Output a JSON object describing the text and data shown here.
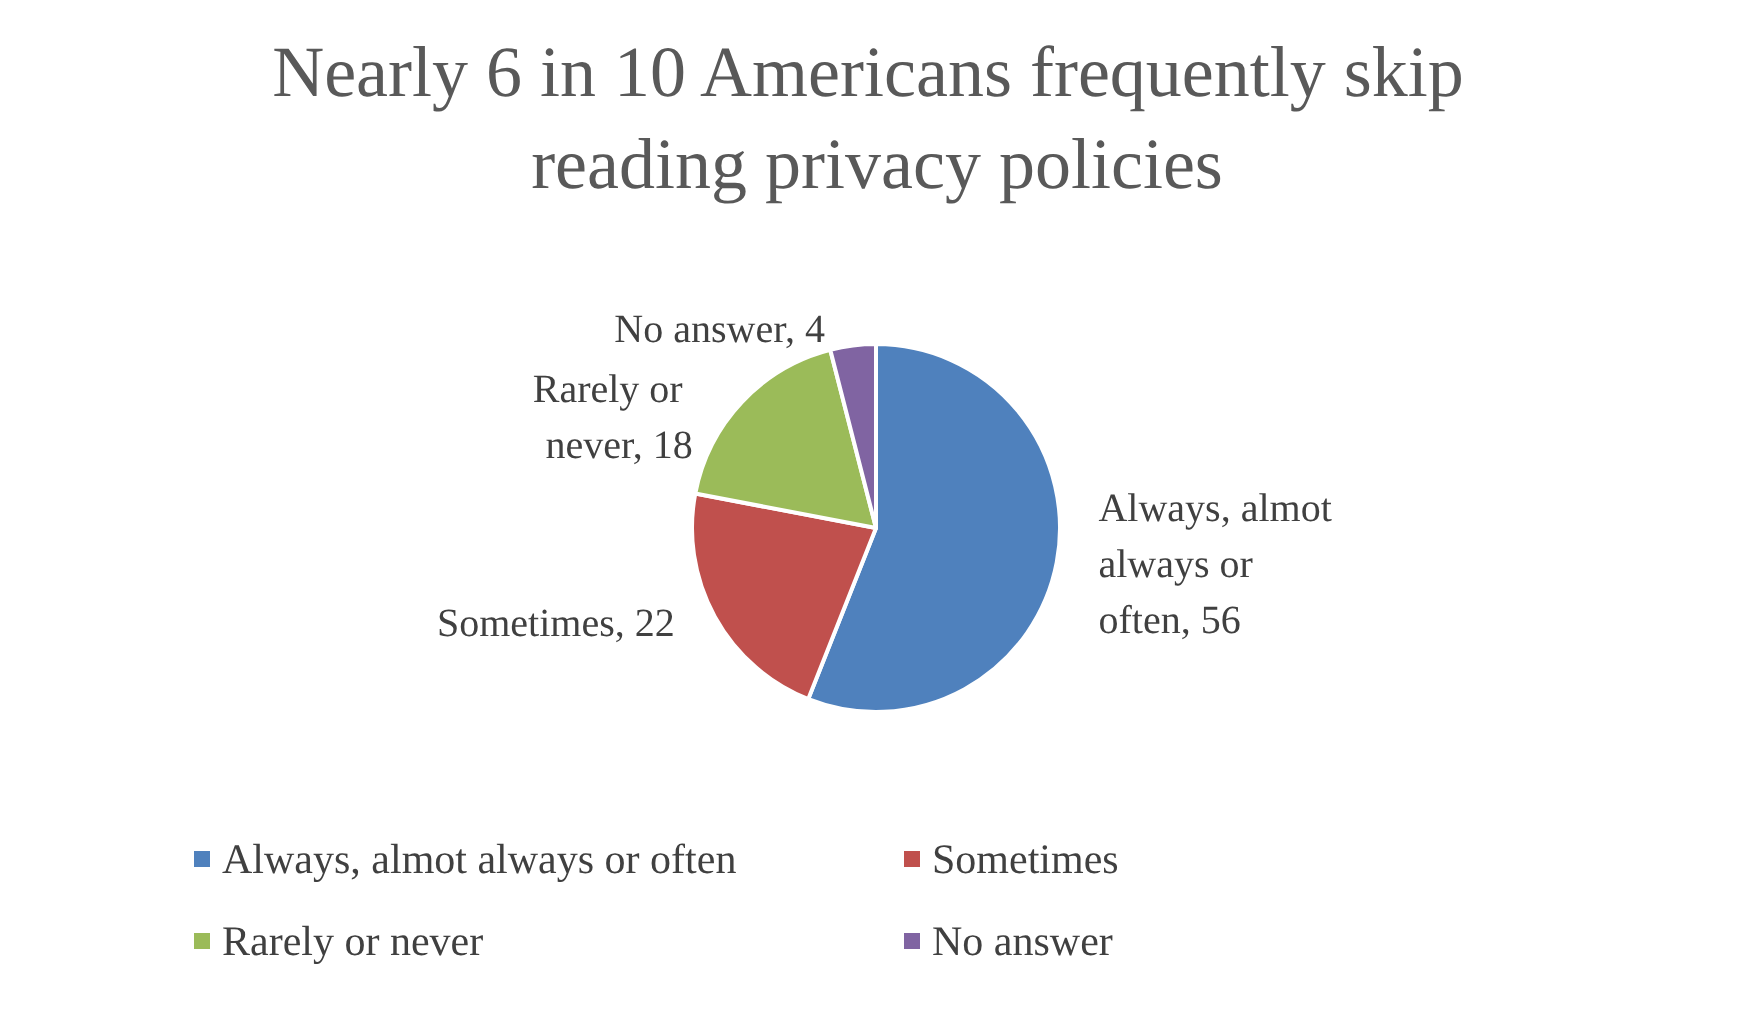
{
  "chart_data": {
    "type": "pie",
    "title": "Nearly 6 in 10 Americans frequently skip reading privacy policies",
    "categories": [
      "Always, almot always or often",
      "Sometimes",
      "Rarely or never",
      "No answer"
    ],
    "values": [
      56,
      22,
      18,
      4
    ],
    "value_labels": [
      "Always, almot always or often, 56",
      "Sometimes, 22",
      "Rarely or never, 18",
      "No answer, 4"
    ],
    "colors": [
      "#4f81bd",
      "#c0504d",
      "#9bbb59",
      "#8064a2"
    ],
    "legend": "bottom"
  }
}
